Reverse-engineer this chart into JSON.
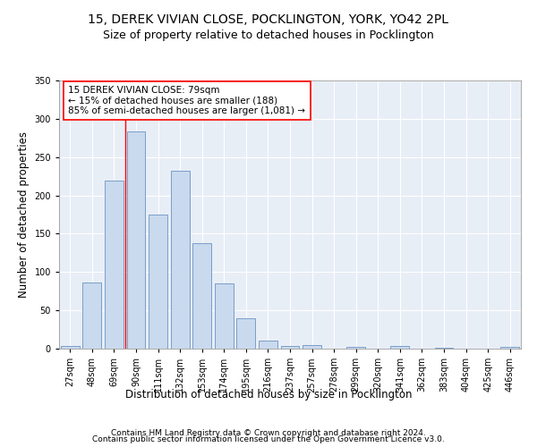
{
  "title1": "15, DEREK VIVIAN CLOSE, POCKLINGTON, YORK, YO42 2PL",
  "title2": "Size of property relative to detached houses in Pocklington",
  "xlabel": "Distribution of detached houses by size in Pocklington",
  "ylabel": "Number of detached properties",
  "bar_color": "#c9d9ee",
  "bar_edge_color": "#7a9ec8",
  "background_color": "#e8eef6",
  "grid_color": "#ffffff",
  "categories": [
    "27sqm",
    "48sqm",
    "69sqm",
    "90sqm",
    "111sqm",
    "132sqm",
    "153sqm",
    "174sqm",
    "195sqm",
    "216sqm",
    "237sqm",
    "257sqm",
    "278sqm",
    "299sqm",
    "320sqm",
    "341sqm",
    "362sqm",
    "383sqm",
    "404sqm",
    "425sqm",
    "446sqm"
  ],
  "values": [
    3,
    86,
    219,
    283,
    175,
    232,
    138,
    85,
    40,
    10,
    4,
    5,
    0,
    2,
    0,
    3,
    0,
    1,
    0,
    0,
    2
  ],
  "ylim": [
    0,
    350
  ],
  "yticks": [
    0,
    50,
    100,
    150,
    200,
    250,
    300,
    350
  ],
  "property_label": "15 DEREK VIVIAN CLOSE: 79sqm",
  "annotation_line1": "← 15% of detached houses are smaller (188)",
  "annotation_line2": "85% of semi-detached houses are larger (1,081) →",
  "red_line_category_index": 2,
  "footer1": "Contains HM Land Registry data © Crown copyright and database right 2024.",
  "footer2": "Contains public sector information licensed under the Open Government Licence v3.0.",
  "title_fontsize": 10,
  "subtitle_fontsize": 9,
  "axis_label_fontsize": 8.5,
  "tick_fontsize": 7,
  "annotation_fontsize": 7.5,
  "footer_fontsize": 6.5
}
